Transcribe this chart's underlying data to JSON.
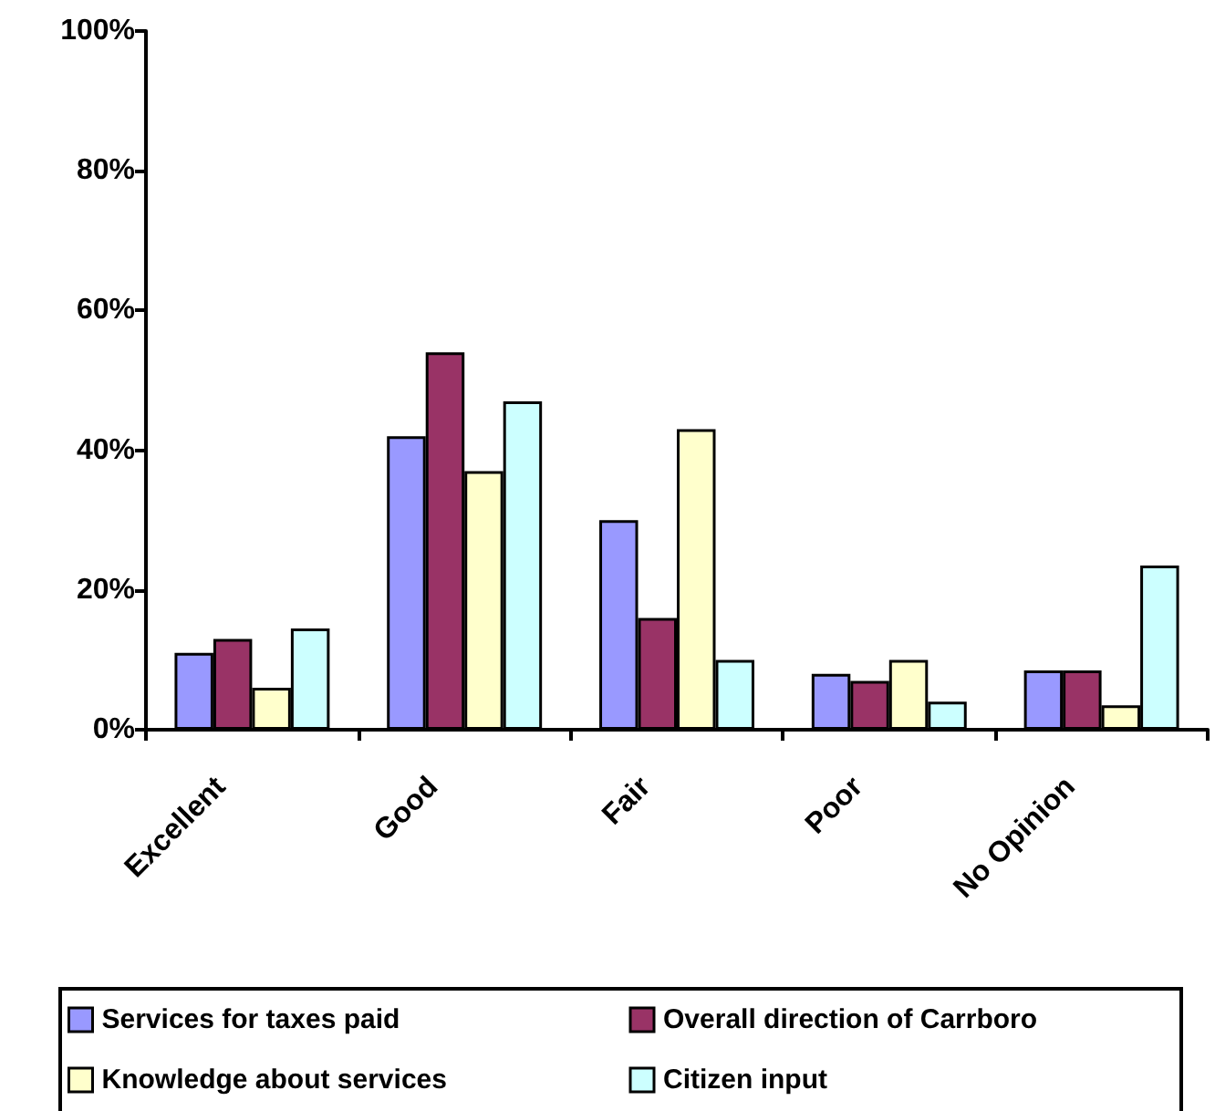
{
  "chart_data": {
    "type": "bar",
    "categories": [
      "Excellent",
      "Good",
      "Fair",
      "Poor",
      "No Opinion"
    ],
    "series": [
      {
        "name": "Services for taxes paid",
        "color": "#9999ff",
        "values": [
          11,
          42,
          30,
          8,
          8.5
        ]
      },
      {
        "name": "Overall direction of Carrboro",
        "color": "#993366",
        "values": [
          13,
          54,
          16,
          7,
          8.5
        ]
      },
      {
        "name": "Knowledge about services",
        "color": "#ffffcc",
        "values": [
          6,
          37,
          43,
          10,
          3.5
        ]
      },
      {
        "name": "Citizen input",
        "color": "#ccffff",
        "values": [
          14.5,
          47,
          10,
          4,
          23.5
        ]
      }
    ],
    "ylim": [
      0,
      100
    ],
    "yticks": [
      {
        "value": 0,
        "label": "0%"
      },
      {
        "value": 20,
        "label": "20%"
      },
      {
        "value": 40,
        "label": "40%"
      },
      {
        "value": 60,
        "label": "60%"
      },
      {
        "value": 80,
        "label": "80%"
      },
      {
        "value": 100,
        "label": "100%"
      }
    ],
    "grid": false,
    "legend": "bottom"
  }
}
